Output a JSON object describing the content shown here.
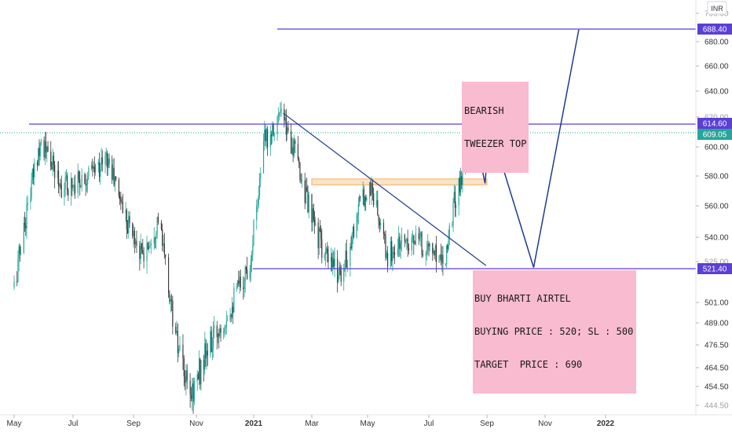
{
  "currency_label": "INR",
  "annotations": {
    "pattern_lines": [
      "BEARISH",
      "TWEEZER TOP"
    ],
    "trade_lines": [
      "BUY BHARTI AIRTEL",
      "BUYING PRICE : 520; SL : 500",
      "TARGET  PRICE : 690"
    ]
  },
  "colors": {
    "up_candle": "#26a69a",
    "down_candle": "#3a3a3a",
    "level_line": "#5b3fd6",
    "level_badge": "#5b3fd6",
    "last_price_badge": "#26a69a",
    "projection": "#1f3b8c",
    "zone_fill": "#fbe3c4",
    "zone_stroke": "#f0b070",
    "note_bg": "#f8bbd0"
  },
  "chart_data": {
    "type": "candlestick",
    "xlabel": "",
    "ylabel": "",
    "x_ticks": [
      "May",
      "Jul",
      "Sep",
      "Nov",
      "2021",
      "Mar",
      "May",
      "Jul",
      "Sep",
      "Nov",
      "2022"
    ],
    "y_ticks": [
      "444.50",
      "454.50",
      "464.50",
      "476.50",
      "489.00",
      "501.00",
      "525.00",
      "540.00",
      "560.00",
      "580.00",
      "600.00",
      "620.00",
      "640.00",
      "660.00",
      "680.00",
      "700.00"
    ],
    "y_ticks_partial": [
      "700.00",
      "620.00",
      "525.00",
      "444.50"
    ],
    "ylim": [
      440,
      702
    ],
    "price_path": [
      {
        "date": "2020-05-01",
        "price": 510
      },
      {
        "date": "2020-05-15",
        "price": 560
      },
      {
        "date": "2020-05-28",
        "price": 605
      },
      {
        "date": "2020-06-20",
        "price": 572
      },
      {
        "date": "2020-07-20",
        "price": 582
      },
      {
        "date": "2020-08-05",
        "price": 592
      },
      {
        "date": "2020-08-25",
        "price": 552
      },
      {
        "date": "2020-09-10",
        "price": 528
      },
      {
        "date": "2020-09-25",
        "price": 552
      },
      {
        "date": "2020-10-12",
        "price": 480
      },
      {
        "date": "2020-10-25",
        "price": 448
      },
      {
        "date": "2020-11-10",
        "price": 470
      },
      {
        "date": "2020-12-10",
        "price": 502
      },
      {
        "date": "2020-12-28",
        "price": 525
      },
      {
        "date": "2021-01-12",
        "price": 604
      },
      {
        "date": "2021-01-28",
        "price": 622
      },
      {
        "date": "2021-02-10",
        "price": 600
      },
      {
        "date": "2021-03-01",
        "price": 552
      },
      {
        "date": "2021-03-20",
        "price": 522
      },
      {
        "date": "2021-04-05",
        "price": 520
      },
      {
        "date": "2021-04-25",
        "price": 566
      },
      {
        "date": "2021-05-05",
        "price": 572
      },
      {
        "date": "2021-05-20",
        "price": 528
      },
      {
        "date": "2021-06-10",
        "price": 540
      },
      {
        "date": "2021-06-30",
        "price": 533
      },
      {
        "date": "2021-07-18",
        "price": 528
      },
      {
        "date": "2021-07-28",
        "price": 562
      },
      {
        "date": "2021-08-06",
        "price": 582
      },
      {
        "date": "2021-08-16",
        "price": 613
      }
    ],
    "last_close": 609.05,
    "levels": [
      688.4,
      614.6,
      521.4
    ],
    "price_badges": [
      "688.40",
      "614.60",
      "609.05",
      "521.40"
    ],
    "supply_zone": {
      "from": "2021-03-01",
      "to": "2021-09-01",
      "low": 574,
      "high": 578
    },
    "trendline": [
      {
        "date": "2021-01-31",
        "price": 623
      },
      {
        "date": "2021-08-31",
        "price": 523
      }
    ],
    "projection_path": [
      {
        "date": "2021-08-17",
        "price": 614
      },
      {
        "date": "2021-08-30",
        "price": 575
      },
      {
        "date": "2021-09-04",
        "price": 614
      },
      {
        "date": "2021-10-20",
        "price": 522
      },
      {
        "date": "2021-12-05",
        "price": 688
      }
    ],
    "grid": false,
    "legend": "none"
  }
}
